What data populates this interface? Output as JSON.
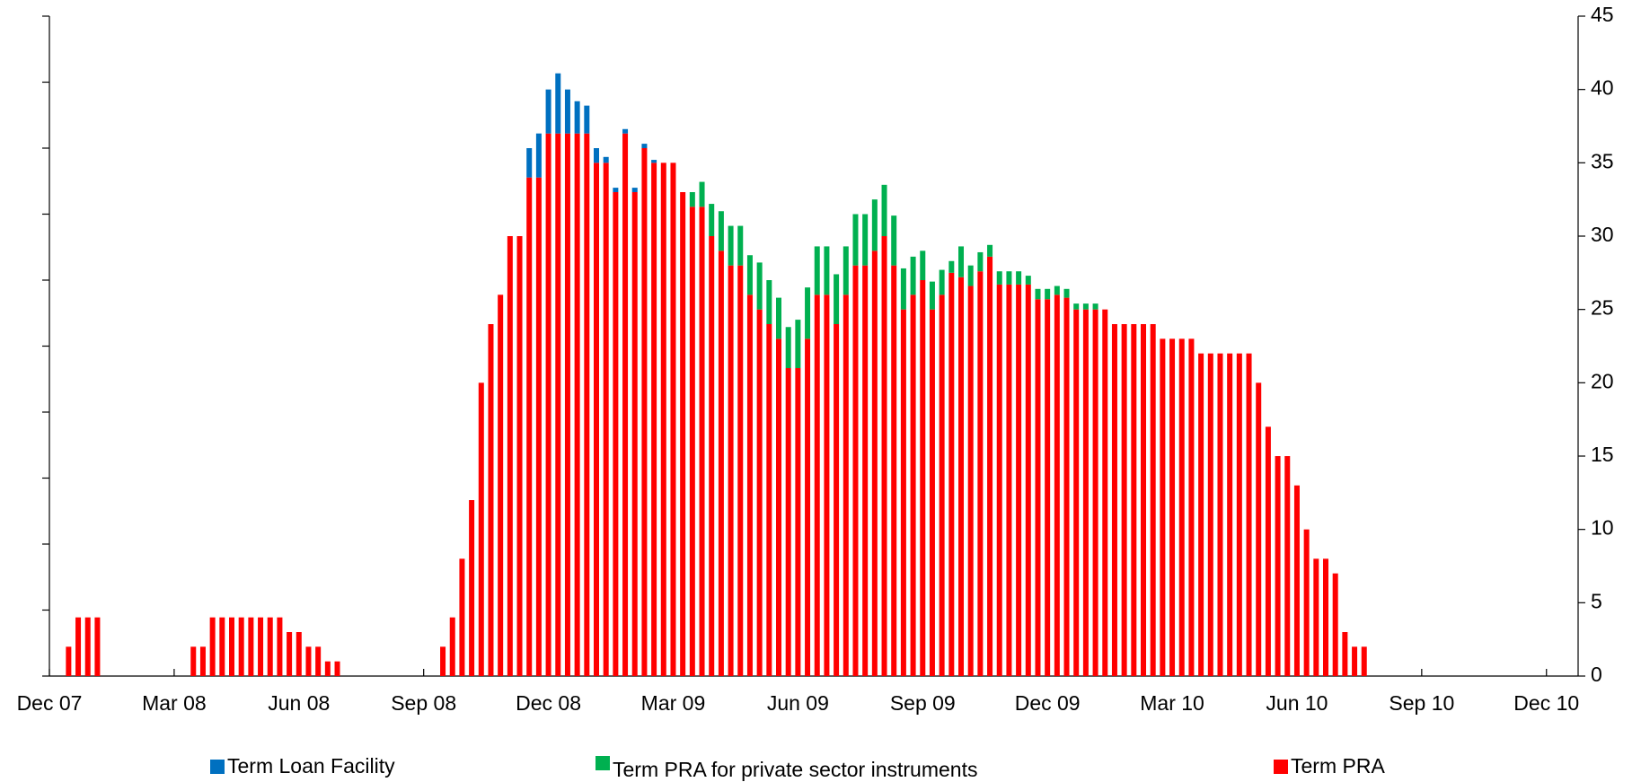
{
  "chart_data": {
    "type": "stacked_bar",
    "x": [
      2,
      3,
      4,
      5,
      15,
      16,
      17,
      18,
      19,
      20,
      21,
      22,
      23,
      24,
      25,
      26,
      27,
      28,
      29,
      30,
      41,
      42,
      43,
      44,
      45,
      46,
      47,
      48,
      49,
      50,
      51,
      52,
      53,
      54,
      55,
      56,
      57,
      58,
      59,
      60,
      61,
      62,
      63,
      64,
      65,
      66,
      67,
      68,
      69,
      70,
      71,
      72,
      73,
      74,
      75,
      76,
      77,
      78,
      79,
      80,
      81,
      82,
      83,
      84,
      85,
      86,
      87,
      88,
      89,
      90,
      91,
      92,
      93,
      94,
      95,
      96,
      97,
      98,
      99,
      100,
      101,
      102,
      103,
      104,
      105,
      106,
      107,
      108,
      109,
      110,
      111,
      112,
      113,
      114,
      115,
      116,
      117,
      118,
      119,
      120,
      121,
      122,
      123,
      124,
      125,
      126,
      127,
      128,
      129,
      130,
      131,
      132,
      133,
      134,
      135,
      136,
      137
    ],
    "xlim": [
      0,
      159.3
    ],
    "xticks": [
      {
        "value": 0,
        "label": "Dec 07"
      },
      {
        "value": 13,
        "label": "Mar 08"
      },
      {
        "value": 26,
        "label": "Jun 08"
      },
      {
        "value": 39,
        "label": "Sep 08"
      },
      {
        "value": 52,
        "label": "Dec 08"
      },
      {
        "value": 65,
        "label": "Mar 09"
      },
      {
        "value": 78,
        "label": "Jun 09"
      },
      {
        "value": 91,
        "label": "Sep 09"
      },
      {
        "value": 104,
        "label": "Dec 09"
      },
      {
        "value": 117,
        "label": "Mar 10"
      },
      {
        "value": 130,
        "label": "Jun 10"
      },
      {
        "value": 143,
        "label": "Sep 10"
      },
      {
        "value": 156,
        "label": "Dec 10"
      }
    ],
    "y2lim": [
      0,
      45
    ],
    "y2ticks": [
      0,
      5,
      10,
      15,
      20,
      25,
      30,
      35,
      40,
      45
    ],
    "series": [
      {
        "name": "Term PRA",
        "color": "#ff0000",
        "axis": "y2",
        "values": [
          2,
          4,
          4,
          4,
          2,
          2,
          4,
          4,
          4,
          4,
          4,
          4,
          4,
          4,
          3,
          3,
          2,
          2,
          1,
          1,
          2,
          4,
          8,
          12,
          20,
          24,
          26,
          30,
          30,
          34,
          34,
          37,
          37,
          37,
          37,
          37,
          35,
          35,
          33,
          37,
          33,
          36,
          35,
          35,
          35,
          33,
          32,
          32,
          30,
          29,
          28,
          28,
          26,
          25,
          24,
          23,
          21,
          21,
          23,
          26,
          26,
          24,
          26,
          28,
          28,
          29,
          30,
          28,
          25,
          26,
          27,
          25,
          26,
          27.5,
          27.2,
          26.6,
          27.6,
          28.6,
          26.7,
          26.7,
          26.7,
          26.7,
          25.7,
          25.7,
          26,
          25.8,
          25,
          25,
          25,
          25,
          24,
          24,
          24,
          24,
          24,
          23,
          23,
          23,
          23,
          22,
          22,
          22,
          22,
          22,
          22,
          20,
          17,
          15,
          15,
          13,
          10,
          8,
          8,
          7,
          3,
          2,
          2
        ]
      },
      {
        "name": "Term PRA for private sector instruments",
        "color": "#00b050",
        "axis": "y2",
        "values": [
          null,
          null,
          null,
          null,
          null,
          null,
          null,
          null,
          null,
          null,
          null,
          null,
          null,
          null,
          null,
          null,
          null,
          null,
          null,
          null,
          null,
          null,
          null,
          null,
          null,
          null,
          null,
          null,
          null,
          null,
          null,
          null,
          null,
          null,
          null,
          null,
          null,
          null,
          null,
          null,
          null,
          null,
          null,
          null,
          null,
          null,
          1,
          1.7,
          2.2,
          2.7,
          2.7,
          2.7,
          2.7,
          3.2,
          3,
          2.8,
          2.8,
          3.3,
          3.5,
          3.3,
          3.3,
          3.4,
          3.3,
          3.5,
          3.5,
          3.5,
          3.5,
          3.4,
          2.8,
          2.6,
          2,
          1.9,
          1.7,
          0.8,
          2.1,
          1.4,
          1.3,
          0.8,
          0.9,
          0.9,
          0.9,
          0.6,
          0.7,
          0.7,
          0.6,
          0.6,
          0.4,
          0.4,
          0.4,
          null,
          null,
          null,
          null,
          null,
          null,
          null,
          null,
          null,
          null,
          null,
          null,
          null,
          null,
          null,
          null,
          null,
          null,
          null,
          null,
          null,
          null,
          null,
          null,
          null,
          null,
          null,
          null
        ]
      },
      {
        "name": "Term Loan Facility",
        "color": "#0070c0",
        "axis": "y2",
        "values": [
          null,
          null,
          null,
          null,
          null,
          null,
          null,
          null,
          null,
          null,
          null,
          null,
          null,
          null,
          null,
          null,
          null,
          null,
          null,
          null,
          null,
          null,
          null,
          null,
          null,
          null,
          null,
          null,
          null,
          2,
          3,
          3,
          4.1,
          3,
          2.2,
          1.9,
          1,
          0.4,
          0.3,
          0.3,
          0.3,
          0.3,
          0.2,
          null,
          null,
          null,
          null,
          null,
          null,
          null,
          null,
          null,
          null,
          null,
          null,
          null,
          null,
          null,
          null,
          null,
          null,
          null,
          null,
          null,
          null,
          null,
          null,
          null,
          null,
          null,
          null,
          null,
          null,
          null,
          null,
          null,
          null,
          null,
          null,
          null,
          null,
          null,
          null,
          null,
          null,
          null,
          null,
          null,
          null,
          null,
          null,
          null,
          null,
          null,
          null,
          null,
          null,
          null,
          null,
          null,
          null,
          null,
          null,
          null,
          null,
          null,
          null,
          null,
          null,
          null,
          null,
          null,
          null,
          null,
          null,
          null,
          null
        ]
      }
    ]
  }
}
